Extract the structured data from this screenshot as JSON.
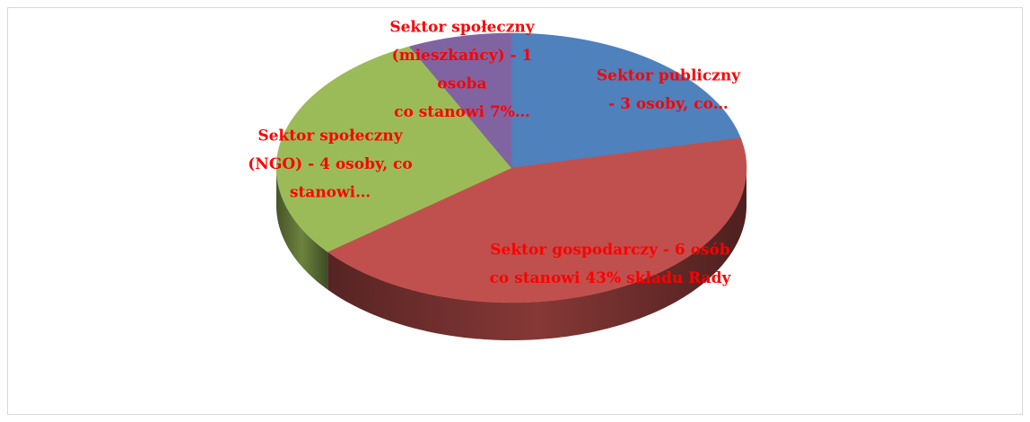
{
  "chart_data": {
    "type": "pie3d",
    "categories": [
      [
        "Sektor publiczny",
        "- 3 osoby, co…"
      ],
      [
        "Sektor gospodarczy - 6 osób",
        "co stanowi 43% składu Rady"
      ],
      [
        "Sektor społeczny",
        "(NGO) - 4 osoby, co",
        "stanowi…"
      ],
      [
        "Sektor społeczny",
        "(mieszkańcy) - 1",
        "osoba",
        "co stanowi 7%…"
      ]
    ],
    "values": [
      3,
      6,
      4,
      1
    ],
    "colors": [
      "#4f81bd",
      "#c0504d",
      "#9bbb59",
      "#8064a2"
    ],
    "label_color": "#ff0000"
  }
}
